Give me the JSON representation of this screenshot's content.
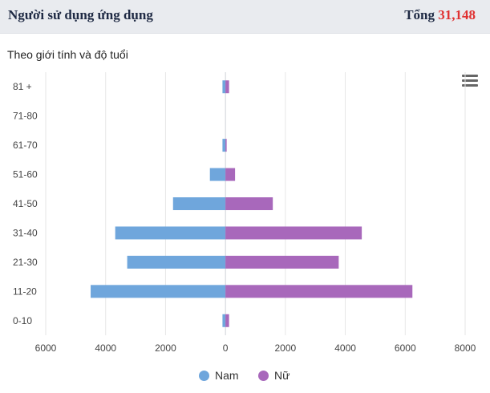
{
  "header": {
    "title": "Người sử dụng ứng dụng",
    "total_label": "Tổng",
    "total_value": "31,148"
  },
  "icons": {
    "menu": "hamburger-menu-icon"
  },
  "colors": {
    "male": "#6fa6dc",
    "female": "#a868bb",
    "grid": "#e6e6e6"
  },
  "chart_data": {
    "type": "bar",
    "orientation": "horizontal",
    "layout": "population-pyramid",
    "title": "Theo giới tính và độ tuổi",
    "categories": [
      "81 +",
      "71-80",
      "61-70",
      "51-60",
      "41-50",
      "31-40",
      "21-30",
      "11-20",
      "0-10"
    ],
    "series": [
      {
        "name": "Nam",
        "values": [
          100,
          0,
          100,
          520,
          1750,
          3680,
          3280,
          4500,
          100
        ]
      },
      {
        "name": "Nữ",
        "values": [
          120,
          0,
          40,
          320,
          1580,
          4550,
          3780,
          6240,
          120
        ]
      }
    ],
    "xlim": [
      -6000,
      8000
    ],
    "xticks": [
      -6000,
      -4000,
      -2000,
      0,
      2000,
      4000,
      6000,
      8000
    ],
    "xtick_labels": [
      "6000",
      "4000",
      "2000",
      "0",
      "2000",
      "4000",
      "6000",
      "8000"
    ],
    "grid": true,
    "legend_position": "bottom-center"
  }
}
